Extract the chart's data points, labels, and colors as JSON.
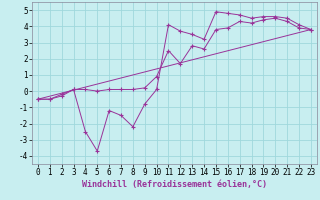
{
  "xlabel": "Windchill (Refroidissement éolien,°C)",
  "background_color": "#c8eef0",
  "grid_color": "#a0d8dc",
  "line_color": "#993399",
  "xlim": [
    -0.5,
    23.5
  ],
  "ylim": [
    -4.5,
    5.5
  ],
  "xticks": [
    0,
    1,
    2,
    3,
    4,
    5,
    6,
    7,
    8,
    9,
    10,
    11,
    12,
    13,
    14,
    15,
    16,
    17,
    18,
    19,
    20,
    21,
    22,
    23
  ],
  "yticks": [
    -4,
    -3,
    -2,
    -1,
    0,
    1,
    2,
    3,
    4,
    5
  ],
  "series1_x": [
    0,
    1,
    2,
    3,
    4,
    5,
    6,
    7,
    8,
    9,
    10,
    11,
    12,
    13,
    14,
    15,
    16,
    17,
    18,
    19,
    20,
    21,
    22,
    23
  ],
  "series1_y": [
    -0.5,
    -0.5,
    -0.3,
    0.1,
    -2.5,
    -3.7,
    -1.2,
    -1.5,
    -2.2,
    -0.8,
    0.1,
    4.1,
    3.7,
    3.5,
    3.2,
    4.9,
    4.8,
    4.7,
    4.5,
    4.6,
    4.6,
    4.5,
    4.1,
    3.8
  ],
  "series2_x": [
    0,
    1,
    2,
    3,
    4,
    5,
    6,
    7,
    8,
    9,
    10,
    11,
    12,
    13,
    14,
    15,
    16,
    17,
    18,
    19,
    20,
    21,
    22,
    23
  ],
  "series2_y": [
    -0.5,
    -0.5,
    -0.2,
    0.1,
    0.1,
    0.0,
    0.1,
    0.1,
    0.1,
    0.2,
    0.9,
    2.5,
    1.7,
    2.8,
    2.6,
    3.8,
    3.9,
    4.3,
    4.2,
    4.4,
    4.5,
    4.3,
    3.9,
    3.8
  ],
  "series3_x": [
    0,
    23
  ],
  "series3_y": [
    -0.5,
    3.8
  ]
}
